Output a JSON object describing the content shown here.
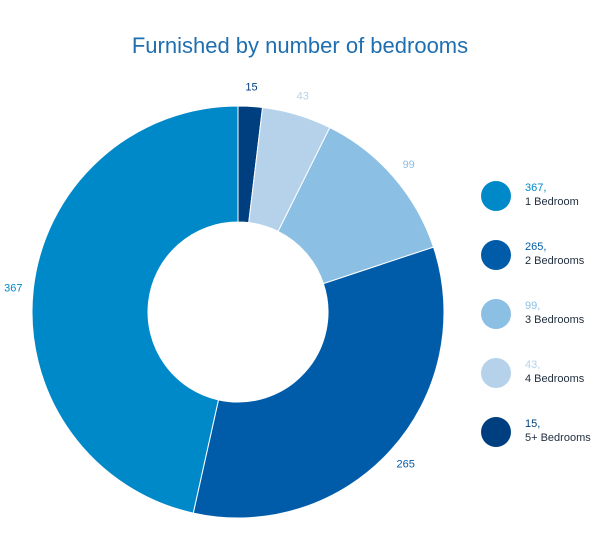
{
  "chart_data": {
    "type": "pie",
    "title": "Furnished by number of bedrooms",
    "slices": [
      {
        "legend_value": "15,",
        "legend_name": "5+ Bedrooms",
        "label": "15",
        "value": 15,
        "color": "#003f7f",
        "label_color": "#003f7f"
      },
      {
        "legend_value": "43,",
        "legend_name": "4 Bedrooms",
        "label": "43",
        "value": 43,
        "color": "#b5d2ea",
        "label_color": "#b5d2ea"
      },
      {
        "legend_value": "99,",
        "legend_name": "3 Bedrooms",
        "label": "99",
        "value": 99,
        "color": "#8bbfe3",
        "label_color": "#8bbfe3"
      },
      {
        "legend_value": "265,",
        "legend_name": "2 Bedrooms",
        "label": "265",
        "value": 265,
        "color": "#005ca8",
        "label_color": "#005ca8"
      },
      {
        "legend_value": "367,",
        "legend_name": "1 Bedroom",
        "label": "367",
        "value": 367,
        "color": "#0089c9",
        "label_color": "#0089c9"
      }
    ],
    "legend": [
      {
        "value": "367,",
        "name": "1 Bedroom",
        "color": "#0089c9"
      },
      {
        "value": "265,",
        "name": "2 Bedrooms",
        "color": "#005ca8"
      },
      {
        "value": "99,",
        "name": "3 Bedrooms",
        "color": "#8bbfe3"
      },
      {
        "value": "43,",
        "name": "4 Bedrooms",
        "color": "#b5d2ea"
      },
      {
        "value": "15,",
        "name": "5+ Bedrooms",
        "color": "#003f7f"
      }
    ],
    "legend_placement": "right"
  }
}
